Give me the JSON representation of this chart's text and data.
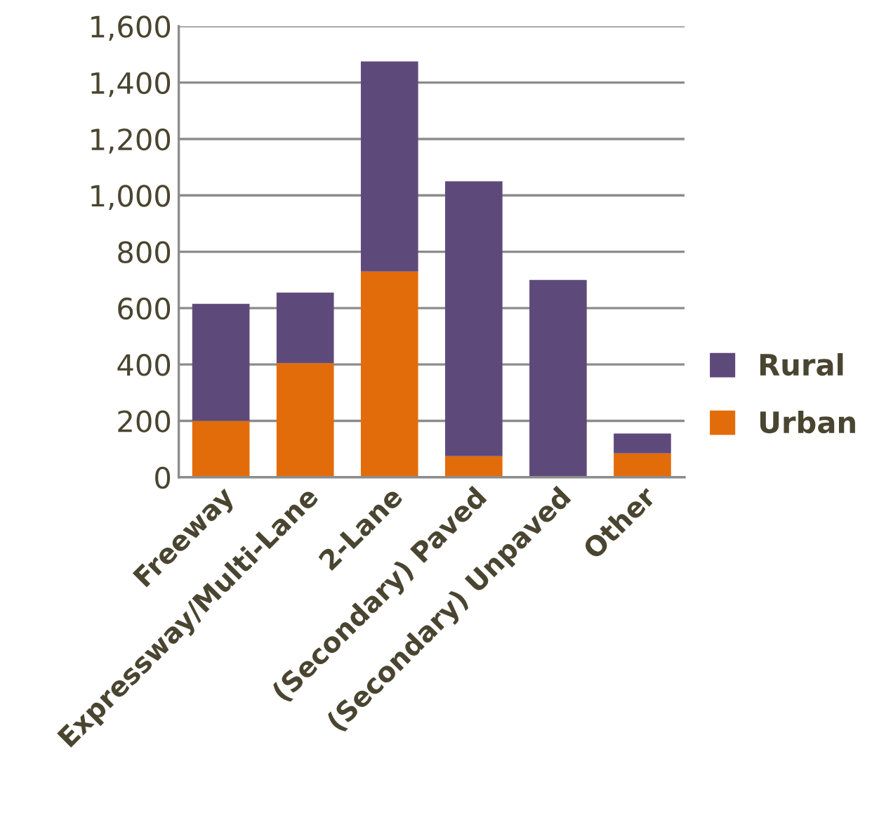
{
  "chart_data": {
    "type": "bar",
    "stacked": true,
    "categories": [
      "Freeway",
      "Expressway/Multi-Lane",
      "2-Lane",
      "(Secondary) Paved",
      "(Secondary) Unpaved",
      "Other"
    ],
    "series": [
      {
        "name": "Urban",
        "color": "#e36c0a",
        "values": [
          200,
          405,
          730,
          75,
          0,
          85
        ]
      },
      {
        "name": "Rural",
        "color": "#5e4a7a",
        "values": [
          415,
          250,
          745,
          975,
          700,
          70
        ]
      }
    ],
    "ylim": [
      0,
      1600
    ],
    "yticks": [
      {
        "value": 0,
        "label": "0"
      },
      {
        "value": 200,
        "label": "200"
      },
      {
        "value": 400,
        "label": "400"
      },
      {
        "value": 600,
        "label": "600"
      },
      {
        "value": 800,
        "label": "800"
      },
      {
        "value": 1000,
        "label": "1,000"
      },
      {
        "value": 1200,
        "label": "1,200"
      },
      {
        "value": 1400,
        "label": "1,400"
      },
      {
        "value": 1600,
        "label": "1,600"
      }
    ],
    "grid": "y",
    "legend": "right"
  }
}
